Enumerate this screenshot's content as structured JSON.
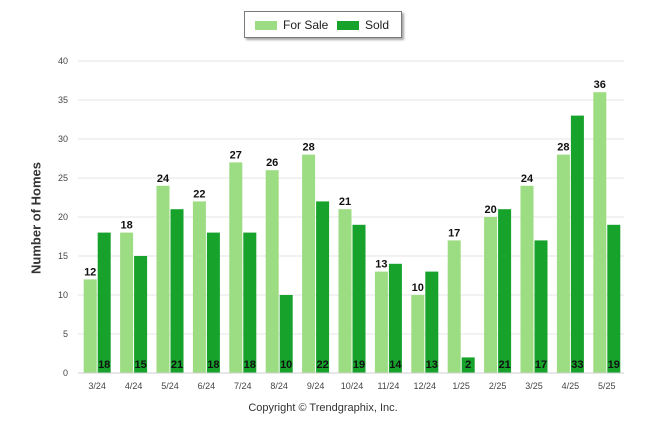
{
  "chart_data": {
    "type": "bar",
    "title": "",
    "xlabel": "",
    "ylabel": "Number of Homes",
    "ylim": [
      0,
      40
    ],
    "yticks": [
      0,
      5,
      10,
      15,
      20,
      25,
      30,
      35,
      40
    ],
    "grid": true,
    "legend_position": "top-center",
    "categories": [
      "3/24",
      "4/24",
      "5/24",
      "6/24",
      "7/24",
      "8/24",
      "9/24",
      "10/24",
      "11/24",
      "12/24",
      "1/25",
      "2/25",
      "3/25",
      "4/25",
      "5/25"
    ],
    "series": [
      {
        "name": "For Sale",
        "color": "#9cdc82",
        "values": [
          12,
          18,
          24,
          22,
          27,
          26,
          28,
          21,
          13,
          10,
          17,
          20,
          24,
          28,
          36
        ]
      },
      {
        "name": "Sold",
        "color": "#16a22b",
        "values": [
          18,
          15,
          21,
          18,
          18,
          10,
          22,
          19,
          14,
          13,
          2,
          21,
          17,
          33,
          19
        ]
      }
    ]
  },
  "footer": {
    "copyright": "Copyright © Trendgraphix, Inc."
  }
}
